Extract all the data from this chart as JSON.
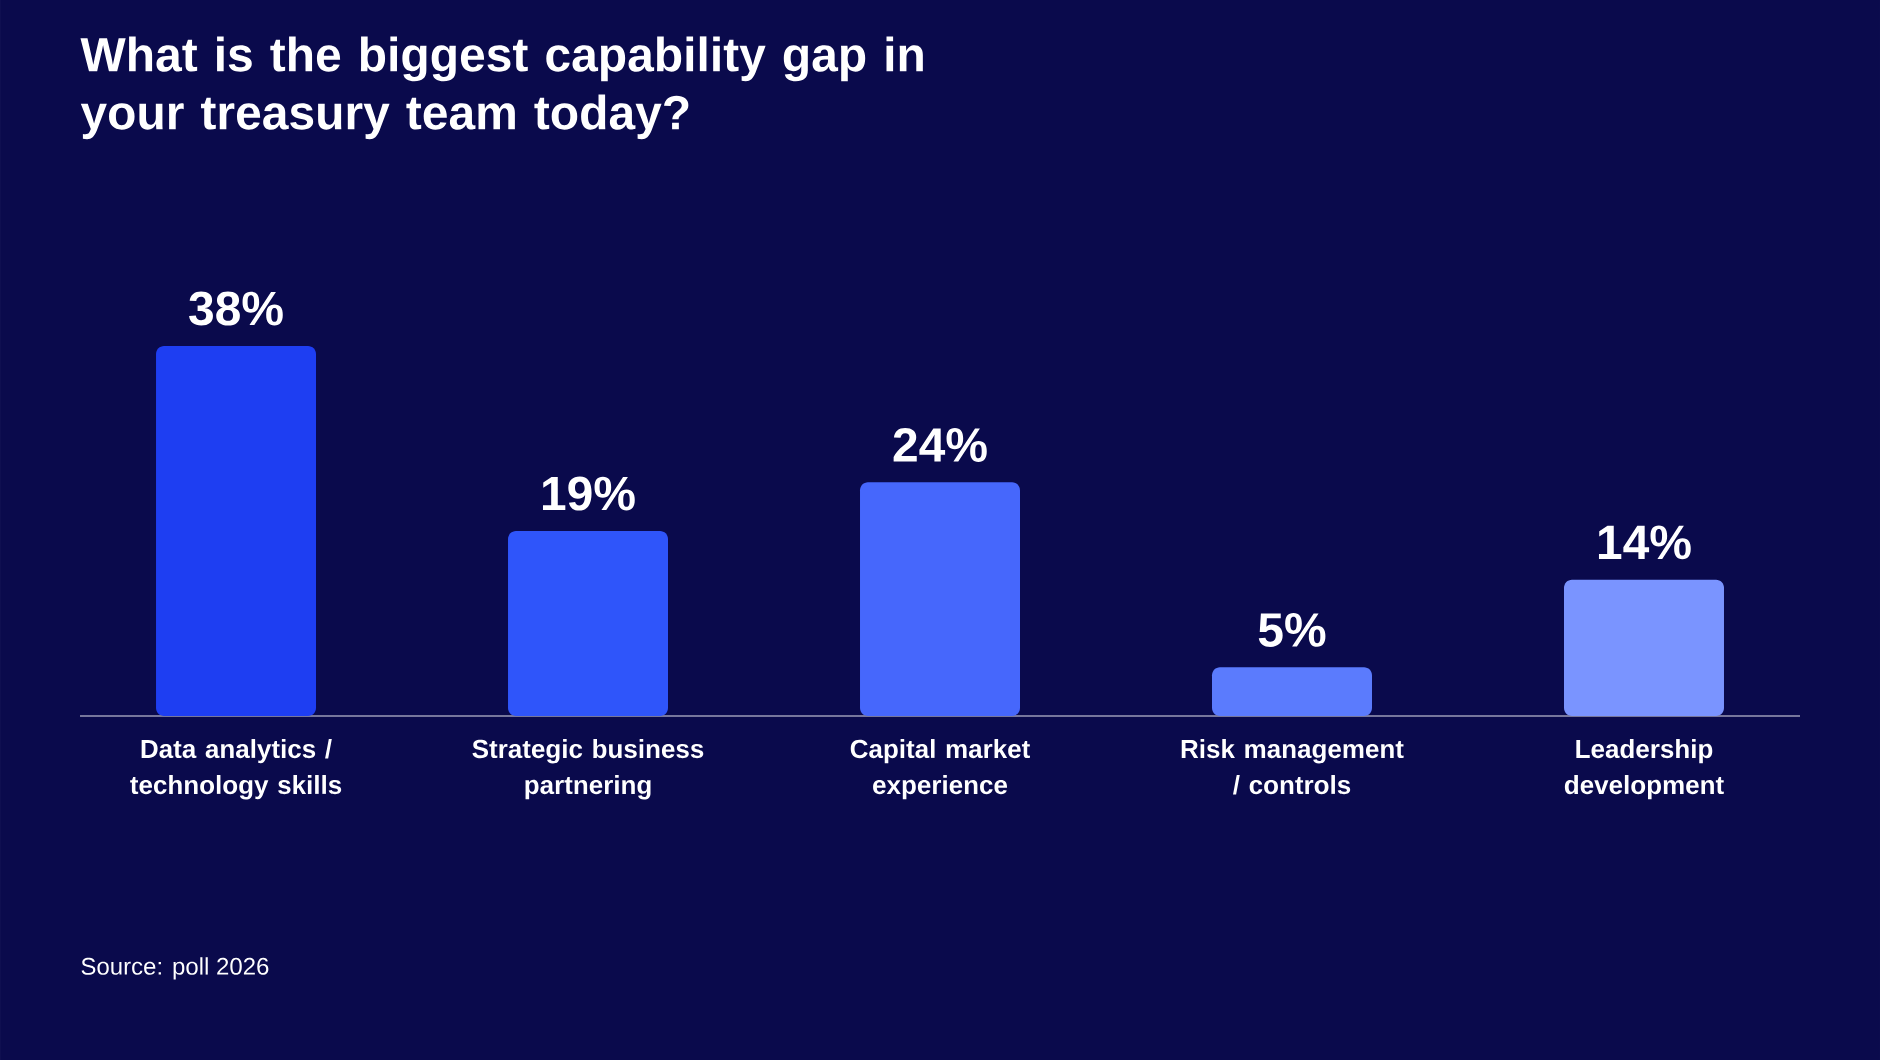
{
  "chart_data": {
    "type": "bar",
    "title": "What is the biggest capability gap in your treasury team today?",
    "categories": [
      "Data analytics / technology skills",
      "Strategic business partnering",
      "Capital market experience",
      "Risk management / controls",
      "Leadership development"
    ],
    "values": [
      38,
      19,
      24,
      5,
      14
    ],
    "value_labels": [
      "38%",
      "19%",
      "24%",
      "5%",
      "14%"
    ],
    "colors": [
      "#1e3ef2",
      "#2f55fa",
      "#4667fc",
      "#5b7bfd",
      "#7a94ff"
    ],
    "annotations": [
      "Source: poll 2026"
    ]
  }
}
